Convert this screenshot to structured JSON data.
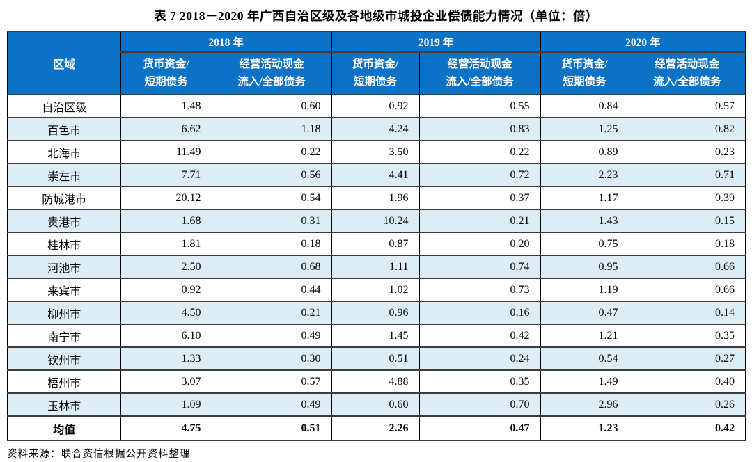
{
  "title": "表 7  2018－2020 年广西自治区级及各地级市城投企业偿债能力情况（单位：倍）",
  "table": {
    "region_header": "区域",
    "years": [
      "2018 年",
      "2019 年",
      "2020 年"
    ],
    "metric_money": [
      "货币资金/",
      "短期债务"
    ],
    "metric_cash": [
      "经营活动现金",
      "流入/全部债务"
    ],
    "rows": [
      {
        "region": "自治区级",
        "values": [
          "1.48",
          "0.60",
          "0.92",
          "0.55",
          "0.84",
          "0.57"
        ]
      },
      {
        "region": "百色市",
        "values": [
          "6.62",
          "1.18",
          "4.24",
          "0.83",
          "1.25",
          "0.82"
        ]
      },
      {
        "region": "北海市",
        "values": [
          "11.49",
          "0.22",
          "3.50",
          "0.22",
          "0.89",
          "0.23"
        ]
      },
      {
        "region": "崇左市",
        "values": [
          "7.71",
          "0.56",
          "4.41",
          "0.72",
          "2.23",
          "0.71"
        ]
      },
      {
        "region": "防城港市",
        "values": [
          "20.12",
          "0.54",
          "1.96",
          "0.37",
          "1.17",
          "0.39"
        ]
      },
      {
        "region": "贵港市",
        "values": [
          "1.68",
          "0.31",
          "10.24",
          "0.21",
          "1.43",
          "0.15"
        ]
      },
      {
        "region": "桂林市",
        "values": [
          "1.81",
          "0.18",
          "0.87",
          "0.20",
          "0.75",
          "0.18"
        ]
      },
      {
        "region": "河池市",
        "values": [
          "2.50",
          "0.68",
          "1.11",
          "0.74",
          "0.95",
          "0.66"
        ]
      },
      {
        "region": "来宾市",
        "values": [
          "0.92",
          "0.44",
          "1.02",
          "0.73",
          "1.19",
          "0.66"
        ]
      },
      {
        "region": "柳州市",
        "values": [
          "4.50",
          "0.21",
          "0.96",
          "0.16",
          "0.47",
          "0.14"
        ]
      },
      {
        "region": "南宁市",
        "values": [
          "6.10",
          "0.49",
          "1.45",
          "0.42",
          "1.21",
          "0.35"
        ]
      },
      {
        "region": "钦州市",
        "values": [
          "1.33",
          "0.30",
          "0.51",
          "0.24",
          "0.54",
          "0.27"
        ]
      },
      {
        "region": "梧州市",
        "values": [
          "3.07",
          "0.57",
          "4.88",
          "0.35",
          "1.49",
          "0.40"
        ]
      },
      {
        "region": "玉林市",
        "values": [
          "1.09",
          "0.49",
          "0.60",
          "0.70",
          "2.96",
          "0.26"
        ]
      }
    ],
    "summary": {
      "region": "均值",
      "values": [
        "4.75",
        "0.51",
        "2.26",
        "0.47",
        "1.23",
        "0.42"
      ]
    }
  },
  "source_note": "资料来源：联合资信根据公开资料整理",
  "colors": {
    "header_bg": "#0c72c5",
    "header_text": "#ffffff",
    "stripe_bg": "#dcedf5",
    "border_dark": "#000000"
  }
}
